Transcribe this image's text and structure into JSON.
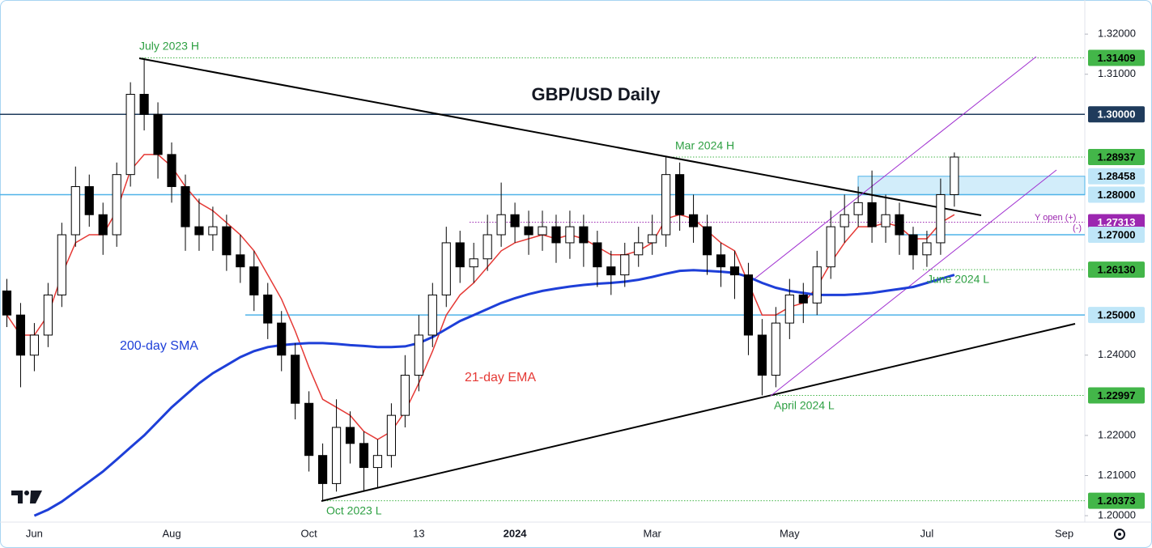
{
  "chart_data": {
    "type": "candlestick",
    "title": "GBP/USD Daily",
    "categories": [
      null,
      null,
      "Jun",
      null,
      null,
      null,
      null,
      null,
      null,
      null,
      null,
      null,
      "Aug",
      null,
      null,
      null,
      null,
      null,
      null,
      null,
      null,
      null,
      "Oct",
      null,
      null,
      null,
      null,
      null,
      null,
      null,
      "13",
      null,
      null,
      null,
      null,
      null,
      null,
      "2024",
      null,
      null,
      null,
      null,
      null,
      null,
      null,
      null,
      null,
      "Mar",
      null,
      null,
      null,
      null,
      null,
      null,
      null,
      null,
      null,
      "May",
      null,
      null,
      null,
      null,
      null,
      null,
      null,
      null,
      null,
      "Jul",
      null,
      null,
      null,
      null,
      null,
      null,
      null,
      null,
      null,
      "Sep",
      null
    ],
    "ohlc": {
      "open": [
        1.256,
        1.25,
        1.24,
        1.245,
        1.255,
        1.27,
        1.282,
        1.275,
        1.27,
        1.285,
        1.305,
        1.3,
        1.29,
        1.282,
        1.272,
        1.27,
        1.272,
        1.265,
        1.262,
        1.255,
        1.248,
        1.24,
        1.228,
        1.215,
        1.208,
        1.222,
        1.218,
        1.212,
        1.215,
        1.225,
        1.235,
        1.245,
        1.255,
        1.268,
        1.262,
        1.264,
        1.27,
        1.275,
        1.272,
        1.27,
        1.272,
        1.268,
        1.272,
        1.268,
        1.262,
        1.26,
        1.265,
        1.268,
        1.27,
        1.285,
        1.275,
        1.272,
        1.265,
        1.262,
        1.26,
        1.245,
        1.235,
        1.248,
        1.255,
        1.253,
        1.262,
        1.272,
        1.275,
        1.278,
        1.272,
        1.275,
        1.27,
        1.265,
        1.268,
        1.28,
        null,
        null,
        null,
        null,
        null,
        null,
        null,
        null,
        null
      ],
      "high": [
        1.259,
        1.253,
        1.248,
        1.258,
        1.273,
        1.287,
        1.285,
        1.278,
        1.288,
        1.308,
        1.31409,
        1.303,
        1.293,
        1.285,
        1.279,
        1.277,
        1.275,
        1.27,
        1.266,
        1.258,
        1.251,
        1.243,
        1.231,
        1.218,
        1.229,
        1.226,
        1.221,
        1.219,
        1.228,
        1.24,
        1.25,
        1.258,
        1.272,
        1.271,
        1.268,
        1.275,
        1.283,
        1.278,
        1.276,
        1.276,
        1.275,
        1.276,
        1.275,
        1.271,
        1.266,
        1.268,
        1.272,
        1.275,
        1.2894,
        1.288,
        1.28,
        1.275,
        1.268,
        1.266,
        1.263,
        1.249,
        1.252,
        1.259,
        1.258,
        1.266,
        1.276,
        1.28,
        1.282,
        1.286,
        1.28,
        1.278,
        1.272,
        1.271,
        1.284,
        1.2905,
        null,
        null,
        null,
        null,
        null,
        null,
        null,
        null,
        null
      ],
      "low": [
        1.247,
        1.232,
        1.236,
        1.242,
        1.252,
        1.267,
        1.272,
        1.265,
        1.267,
        1.282,
        1.296,
        1.284,
        1.278,
        1.266,
        1.266,
        1.266,
        1.261,
        1.258,
        1.251,
        1.244,
        1.236,
        1.224,
        1.211,
        1.20373,
        1.206,
        1.213,
        1.206,
        1.207,
        1.212,
        1.222,
        1.231,
        1.242,
        1.252,
        1.258,
        1.258,
        1.261,
        1.267,
        1.268,
        1.265,
        1.266,
        1.263,
        1.264,
        1.262,
        1.257,
        1.255,
        1.257,
        1.262,
        1.265,
        1.267,
        1.271,
        1.268,
        1.26,
        1.257,
        1.254,
        1.24,
        1.22997,
        1.232,
        1.244,
        1.248,
        1.25,
        1.259,
        1.268,
        1.272,
        1.268,
        1.268,
        1.265,
        1.2613,
        1.262,
        1.265,
        1.277,
        null,
        null,
        null,
        null,
        null,
        null,
        null,
        null,
        null
      ],
      "close": [
        1.25,
        1.24,
        1.245,
        1.255,
        1.27,
        1.282,
        1.275,
        1.27,
        1.285,
        1.305,
        1.3,
        1.29,
        1.282,
        1.272,
        1.27,
        1.272,
        1.265,
        1.262,
        1.255,
        1.248,
        1.24,
        1.228,
        1.215,
        1.208,
        1.222,
        1.218,
        1.212,
        1.215,
        1.225,
        1.235,
        1.245,
        1.255,
        1.268,
        1.262,
        1.264,
        1.27,
        1.275,
        1.272,
        1.27,
        1.272,
        1.268,
        1.272,
        1.268,
        1.262,
        1.26,
        1.265,
        1.268,
        1.27,
        1.285,
        1.275,
        1.272,
        1.265,
        1.262,
        1.26,
        1.245,
        1.235,
        1.248,
        1.255,
        1.253,
        1.262,
        1.272,
        1.275,
        1.278,
        1.272,
        1.275,
        1.27,
        1.265,
        1.268,
        1.28,
        1.28937,
        null,
        null,
        null,
        null,
        null,
        null,
        null,
        null,
        null
      ],
      "up_color": "#ffffff",
      "down_color": "#000000"
    },
    "series": [
      {
        "name": "21-day EMA",
        "color": "#e53935",
        "values": [
          1.25,
          1.245,
          1.245,
          1.25,
          1.26,
          1.268,
          1.27,
          1.27,
          1.276,
          1.286,
          1.29,
          1.29,
          1.287,
          1.282,
          1.278,
          1.276,
          1.273,
          1.27,
          1.266,
          1.26,
          1.254,
          1.246,
          1.237,
          1.229,
          1.227,
          1.225,
          1.221,
          1.219,
          1.221,
          1.226,
          1.233,
          1.241,
          1.25,
          1.255,
          1.258,
          1.262,
          1.266,
          1.268,
          1.269,
          1.27,
          1.269,
          1.27,
          1.269,
          1.267,
          1.265,
          1.265,
          1.266,
          1.268,
          1.274,
          1.275,
          1.274,
          1.271,
          1.268,
          1.266,
          1.258,
          1.25,
          1.25,
          1.252,
          1.253,
          1.257,
          1.263,
          1.268,
          1.272,
          1.272,
          1.273,
          1.272,
          1.269,
          1.269,
          1.273,
          1.275,
          null,
          null,
          null,
          null,
          null,
          null,
          null,
          null,
          null
        ]
      },
      {
        "name": "200-day SMA",
        "color": "#1e3fd8",
        "values": [
          null,
          null,
          1.2,
          1.2015,
          1.2035,
          1.206,
          1.2085,
          1.211,
          1.214,
          1.217,
          1.22,
          1.2235,
          1.227,
          1.23,
          1.233,
          1.2355,
          1.2375,
          1.2395,
          1.241,
          1.242,
          1.2425,
          1.2428,
          1.243,
          1.243,
          1.2428,
          1.2425,
          1.2423,
          1.242,
          1.242,
          1.2422,
          1.243,
          1.2445,
          1.2465,
          1.2485,
          1.25,
          1.2515,
          1.253,
          1.2542,
          1.2552,
          1.256,
          1.2566,
          1.2571,
          1.2575,
          1.2578,
          1.258,
          1.2583,
          1.2588,
          1.2595,
          1.2603,
          1.261,
          1.2612,
          1.261,
          1.2608,
          1.2605,
          1.2595,
          1.258,
          1.2568,
          1.256,
          1.2555,
          1.255,
          1.255,
          1.255,
          1.2552,
          1.2555,
          1.256,
          1.2565,
          1.257,
          1.258,
          1.259,
          1.26,
          null,
          null,
          null,
          null,
          null,
          null,
          null,
          null,
          null
        ]
      }
    ],
    "ylim": [
      1.1984,
      1.3285
    ],
    "yticks": [
      {
        "value": 1.32,
        "label": "1.32000"
      },
      {
        "value": 1.31,
        "label": "1.31000"
      },
      {
        "value": 1.24,
        "label": "1.24000"
      },
      {
        "value": 1.22,
        "label": "1.22000"
      },
      {
        "value": 1.21,
        "label": "1.21000"
      },
      {
        "value": 1.2,
        "label": "1.20000"
      }
    ],
    "levels": [
      {
        "value": 1.31409,
        "label": "1.31409",
        "style": "dotted",
        "color": "#43b649",
        "text_color": "#000000"
      },
      {
        "value": 1.3,
        "label": "1.30000",
        "style": "solid",
        "color": "#1f3b5c",
        "text_color": "#ffffff"
      },
      {
        "value": 1.28937,
        "label": "1.28937",
        "style": "dotted",
        "color": "#43b649",
        "text_color": "#000000"
      },
      {
        "value": 1.28458,
        "label": "1.28458",
        "style": "box",
        "color": "#bfe6f8",
        "text_color": "#000000"
      },
      {
        "value": 1.28,
        "label": "1.28000",
        "style": "solid",
        "color": "#4fb3e8",
        "text_color": "#000000"
      },
      {
        "value": 1.27313,
        "label": "1.27313",
        "style": "dotted",
        "color": "#9c27b0",
        "text_color": "#ffffff"
      },
      {
        "value": 1.27,
        "label": "1.27000",
        "style": "solid",
        "color": "#4fb3e8",
        "text_color": "#000000"
      },
      {
        "value": 1.2613,
        "label": "1.26130",
        "style": "dotted",
        "color": "#43b649",
        "text_color": "#000000"
      },
      {
        "value": 1.25,
        "label": "1.25000",
        "style": "solid",
        "color": "#4fb3e8",
        "text_color": "#000000"
      },
      {
        "value": 1.22997,
        "label": "1.22997",
        "style": "dotted",
        "color": "#43b649",
        "text_color": "#000000"
      },
      {
        "value": 1.20373,
        "label": "1.20373",
        "style": "dotted",
        "color": "#43b649",
        "text_color": "#000000"
      }
    ],
    "annotations": [
      {
        "text": "July 2023 H",
        "color": "#2ea043"
      },
      {
        "text": "Mar 2024 H",
        "color": "#2ea043"
      },
      {
        "text": "Oct 2023 L",
        "color": "#2ea043"
      },
      {
        "text": "April 2024 L",
        "color": "#2ea043"
      },
      {
        "text": "June 2024 L",
        "color": "#2ea043"
      },
      {
        "text": "Y open (+)",
        "color": "#9c27b0"
      },
      {
        "text": "(-)",
        "color": "#9c27b0"
      }
    ]
  }
}
